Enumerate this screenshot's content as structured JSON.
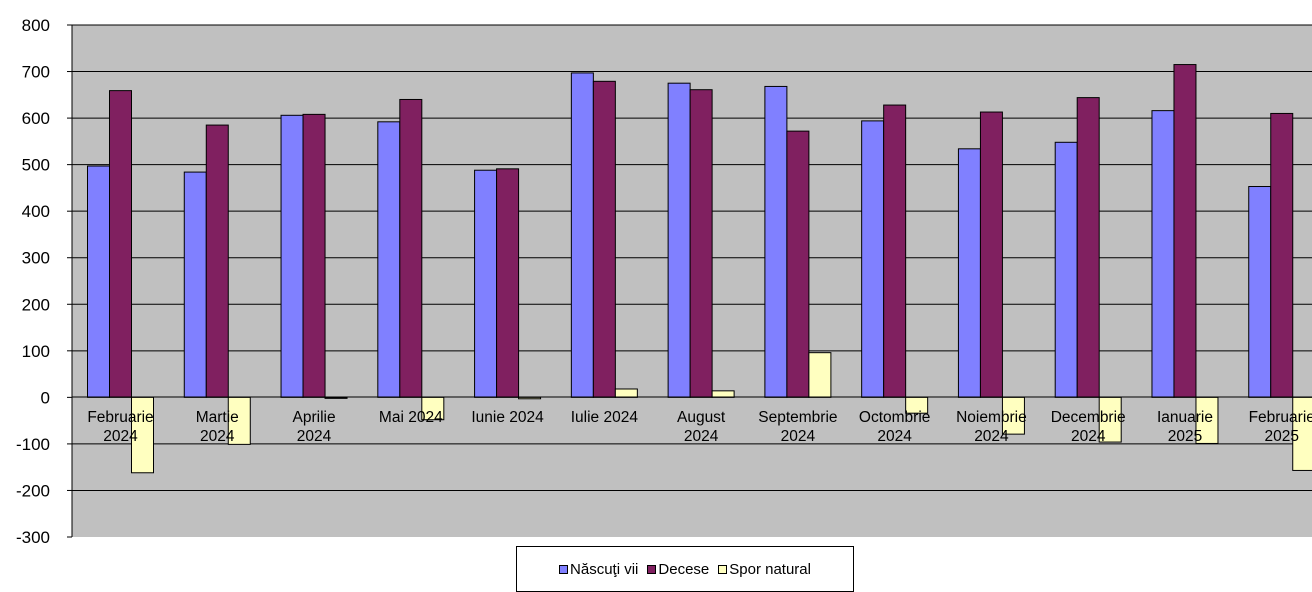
{
  "chart_data": {
    "type": "bar",
    "categories": [
      [
        "Februarie",
        "2024"
      ],
      [
        "Martie",
        "2024"
      ],
      [
        "Aprilie",
        "2024"
      ],
      [
        "Mai 2024"
      ],
      [
        "Iunie 2024"
      ],
      [
        "Iulie 2024"
      ],
      [
        "August",
        "2024"
      ],
      [
        "Septembrie",
        "2024"
      ],
      [
        "Octombrie",
        "2024"
      ],
      [
        "Noiembrie",
        "2024"
      ],
      [
        "Decembrie",
        "2024"
      ],
      [
        "Ianuarie",
        "2025"
      ],
      [
        "Februarie",
        "2025"
      ]
    ],
    "series": [
      {
        "name": "Născuţi vii",
        "color": "#8080ff",
        "values": [
          497,
          484,
          606,
          592,
          488,
          697,
          675,
          668,
          594,
          534,
          548,
          616,
          453
        ]
      },
      {
        "name": "Decese",
        "color": "#802060",
        "values": [
          659,
          585,
          608,
          640,
          491,
          679,
          661,
          572,
          628,
          613,
          644,
          715,
          610
        ]
      },
      {
        "name": "Spor natural",
        "color": "#ffffc0",
        "values": [
          -162,
          -101,
          -2,
          -48,
          -3,
          18,
          14,
          96,
          -34,
          -79,
          -96,
          -99,
          -157
        ]
      }
    ],
    "yticks": [
      800,
      700,
      600,
      500,
      400,
      300,
      200,
      100,
      0,
      -100,
      -200,
      -300
    ],
    "ylim": [
      -300,
      800
    ],
    "grid": true,
    "legend_position": "bottom-center",
    "plot_background": "#c0c0c0"
  }
}
